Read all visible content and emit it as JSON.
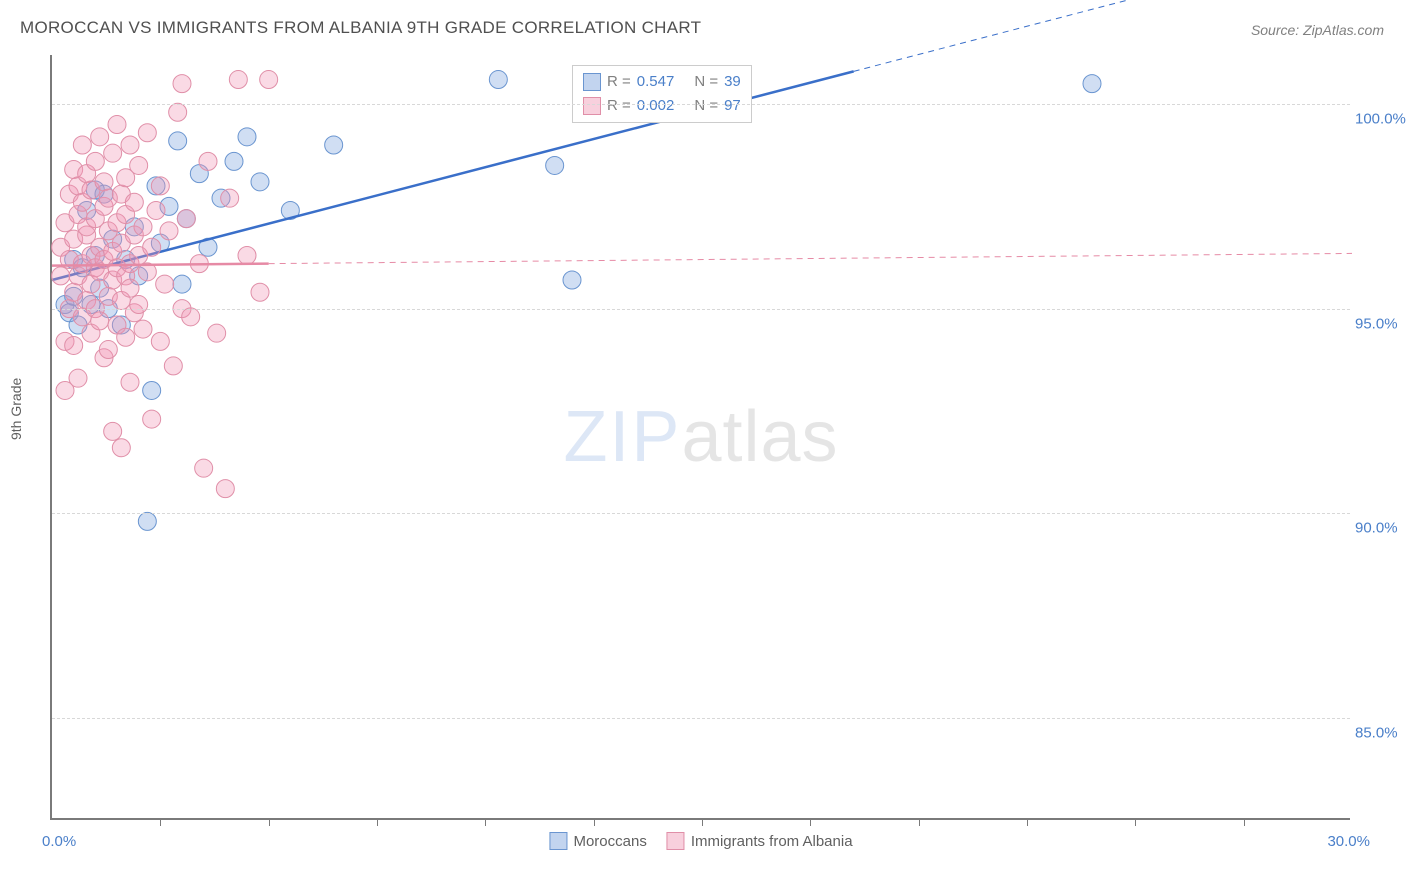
{
  "title": "MOROCCAN VS IMMIGRANTS FROM ALBANIA 9TH GRADE CORRELATION CHART",
  "source": "Source: ZipAtlas.com",
  "y_axis_title": "9th Grade",
  "watermark": {
    "part_a": "ZIP",
    "part_b": "atlas"
  },
  "chart": {
    "type": "scatter",
    "xlim": [
      0,
      30
    ],
    "ylim": [
      82.5,
      101.2
    ],
    "x_ticks_label": {
      "left": "0.0%",
      "right": "30.0%"
    },
    "x_tick_positions": [
      2.5,
      5,
      7.5,
      10,
      12.5,
      15,
      17.5,
      20,
      22.5,
      25,
      27.5
    ],
    "y_ticks": [
      {
        "v": 100,
        "label": "100.0%"
      },
      {
        "v": 95,
        "label": "95.0%"
      },
      {
        "v": 90,
        "label": "90.0%"
      },
      {
        "v": 85,
        "label": "85.0%"
      }
    ],
    "grid_color": "#d8d8d8",
    "background": "#ffffff",
    "marker_radius": 9,
    "series": [
      {
        "key": "moroccans",
        "label": "Moroccans",
        "color_fill": "rgba(120,160,220,0.35)",
        "color_stroke": "#6a95d0",
        "R": "0.547",
        "N": "39",
        "trend": {
          "x1": 0,
          "y1": 95.7,
          "x2": 18.5,
          "y2": 100.8,
          "dash_after": true
        },
        "points": [
          [
            0.3,
            95.1
          ],
          [
            0.4,
            94.9
          ],
          [
            0.5,
            96.2
          ],
          [
            0.5,
            95.3
          ],
          [
            0.6,
            94.6
          ],
          [
            0.7,
            96.0
          ],
          [
            0.8,
            97.4
          ],
          [
            0.9,
            95.1
          ],
          [
            1.0,
            97.9
          ],
          [
            1.0,
            96.3
          ],
          [
            1.1,
            95.5
          ],
          [
            1.2,
            97.8
          ],
          [
            1.3,
            95.0
          ],
          [
            1.4,
            96.7
          ],
          [
            1.6,
            94.6
          ],
          [
            1.7,
            96.2
          ],
          [
            1.9,
            97.0
          ],
          [
            2.0,
            95.8
          ],
          [
            2.2,
            89.8
          ],
          [
            2.3,
            93.0
          ],
          [
            2.4,
            98.0
          ],
          [
            2.5,
            96.6
          ],
          [
            2.7,
            97.5
          ],
          [
            2.9,
            99.1
          ],
          [
            3.0,
            95.6
          ],
          [
            3.1,
            97.2
          ],
          [
            3.4,
            98.3
          ],
          [
            3.6,
            96.5
          ],
          [
            3.9,
            97.7
          ],
          [
            4.2,
            98.6
          ],
          [
            4.5,
            99.2
          ],
          [
            4.8,
            98.1
          ],
          [
            5.5,
            97.4
          ],
          [
            6.5,
            99.0
          ],
          [
            10.3,
            100.6
          ],
          [
            11.6,
            98.5
          ],
          [
            12.0,
            95.7
          ],
          [
            14.1,
            100.6
          ],
          [
            24.0,
            100.5
          ]
        ]
      },
      {
        "key": "albania",
        "label": "Immigrants from Albania",
        "color_fill": "rgba(240,150,180,0.35)",
        "color_stroke": "#e08fa8",
        "R": "0.002",
        "N": "97",
        "trend": {
          "x1": 0,
          "y1": 96.05,
          "x2": 5.0,
          "y2": 96.1,
          "dash_after": true
        },
        "points": [
          [
            0.2,
            95.8
          ],
          [
            0.2,
            96.5
          ],
          [
            0.3,
            97.1
          ],
          [
            0.3,
            94.2
          ],
          [
            0.3,
            93.0
          ],
          [
            0.4,
            95.0
          ],
          [
            0.4,
            97.8
          ],
          [
            0.4,
            96.2
          ],
          [
            0.5,
            98.4
          ],
          [
            0.5,
            95.4
          ],
          [
            0.5,
            96.7
          ],
          [
            0.5,
            94.1
          ],
          [
            0.6,
            97.3
          ],
          [
            0.6,
            93.3
          ],
          [
            0.6,
            95.8
          ],
          [
            0.6,
            98.0
          ],
          [
            0.7,
            96.1
          ],
          [
            0.7,
            97.6
          ],
          [
            0.7,
            94.8
          ],
          [
            0.7,
            99.0
          ],
          [
            0.8,
            95.2
          ],
          [
            0.8,
            96.8
          ],
          [
            0.8,
            98.3
          ],
          [
            0.8,
            97.0
          ],
          [
            0.9,
            95.6
          ],
          [
            0.9,
            96.3
          ],
          [
            0.9,
            97.9
          ],
          [
            0.9,
            94.4
          ],
          [
            1.0,
            98.6
          ],
          [
            1.0,
            96.0
          ],
          [
            1.0,
            95.0
          ],
          [
            1.0,
            97.2
          ],
          [
            1.1,
            96.5
          ],
          [
            1.1,
            99.2
          ],
          [
            1.1,
            94.7
          ],
          [
            1.1,
            95.9
          ],
          [
            1.2,
            97.5
          ],
          [
            1.2,
            93.8
          ],
          [
            1.2,
            96.2
          ],
          [
            1.2,
            98.1
          ],
          [
            1.3,
            95.3
          ],
          [
            1.3,
            96.9
          ],
          [
            1.3,
            97.7
          ],
          [
            1.3,
            94.0
          ],
          [
            1.4,
            98.8
          ],
          [
            1.4,
            92.0
          ],
          [
            1.4,
            96.4
          ],
          [
            1.4,
            95.7
          ],
          [
            1.5,
            97.1
          ],
          [
            1.5,
            99.5
          ],
          [
            1.5,
            94.6
          ],
          [
            1.5,
            96.0
          ],
          [
            1.6,
            95.2
          ],
          [
            1.6,
            97.8
          ],
          [
            1.6,
            91.6
          ],
          [
            1.6,
            96.6
          ],
          [
            1.7,
            98.2
          ],
          [
            1.7,
            94.3
          ],
          [
            1.7,
            95.8
          ],
          [
            1.7,
            97.3
          ],
          [
            1.8,
            96.1
          ],
          [
            1.8,
            99.0
          ],
          [
            1.8,
            93.2
          ],
          [
            1.8,
            95.5
          ],
          [
            1.9,
            97.6
          ],
          [
            1.9,
            94.9
          ],
          [
            1.9,
            96.8
          ],
          [
            2.0,
            98.5
          ],
          [
            2.0,
            95.1
          ],
          [
            2.0,
            96.3
          ],
          [
            2.1,
            97.0
          ],
          [
            2.1,
            94.5
          ],
          [
            2.2,
            99.3
          ],
          [
            2.2,
            95.9
          ],
          [
            2.3,
            92.3
          ],
          [
            2.3,
            96.5
          ],
          [
            2.4,
            97.4
          ],
          [
            2.5,
            94.2
          ],
          [
            2.5,
            98.0
          ],
          [
            2.6,
            95.6
          ],
          [
            2.7,
            96.9
          ],
          [
            2.8,
            93.6
          ],
          [
            2.9,
            99.8
          ],
          [
            3.0,
            100.5
          ],
          [
            3.0,
            95.0
          ],
          [
            3.1,
            97.2
          ],
          [
            3.2,
            94.8
          ],
          [
            3.4,
            96.1
          ],
          [
            3.5,
            91.1
          ],
          [
            3.6,
            98.6
          ],
          [
            3.8,
            94.4
          ],
          [
            4.0,
            90.6
          ],
          [
            4.1,
            97.7
          ],
          [
            4.3,
            100.6
          ],
          [
            4.5,
            96.3
          ],
          [
            4.8,
            95.4
          ],
          [
            5.0,
            100.6
          ]
        ]
      }
    ]
  },
  "top_legend": {
    "rows": [
      {
        "swatch": "b",
        "r_label": "R =",
        "r_val": "0.547",
        "n_label": "N =",
        "n_val": "39"
      },
      {
        "swatch": "p",
        "r_label": "R =",
        "r_val": "0.002",
        "n_label": "N =",
        "n_val": "97"
      }
    ]
  }
}
